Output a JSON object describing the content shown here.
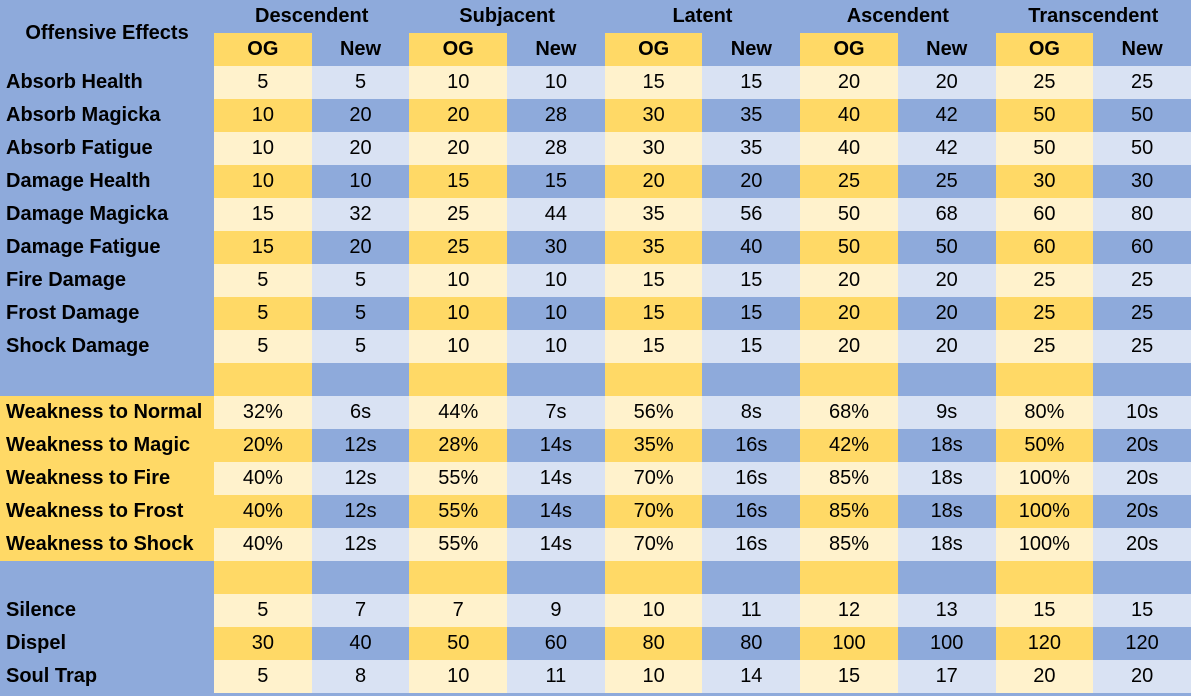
{
  "sheet": {
    "corner_label": "Offensive Effects",
    "tiers": [
      "Descendent",
      "Subjacent",
      "Latent",
      "Ascendent",
      "Transcendent"
    ],
    "sub_headers": [
      "OG",
      "New",
      "OG",
      "New",
      "OG",
      "New",
      "OG",
      "New",
      "OG",
      "New"
    ],
    "rows": [
      {
        "label": "Absorb Health",
        "values": [
          "5",
          "5",
          "10",
          "10",
          "15",
          "15",
          "20",
          "20",
          "25",
          "25"
        ]
      },
      {
        "label": "Absorb Magicka",
        "values": [
          "10",
          "20",
          "20",
          "28",
          "30",
          "35",
          "40",
          "42",
          "50",
          "50"
        ]
      },
      {
        "label": "Absorb Fatigue",
        "values": [
          "10",
          "20",
          "20",
          "28",
          "30",
          "35",
          "40",
          "42",
          "50",
          "50"
        ]
      },
      {
        "label": "Damage Health",
        "values": [
          "10",
          "10",
          "15",
          "15",
          "20",
          "20",
          "25",
          "25",
          "30",
          "30"
        ]
      },
      {
        "label": "Damage Magicka",
        "values": [
          "15",
          "32",
          "25",
          "44",
          "35",
          "56",
          "50",
          "68",
          "60",
          "80"
        ]
      },
      {
        "label": "Damage Fatigue",
        "values": [
          "15",
          "20",
          "25",
          "30",
          "35",
          "40",
          "50",
          "50",
          "60",
          "60"
        ]
      },
      {
        "label": "Fire Damage",
        "values": [
          "5",
          "5",
          "10",
          "10",
          "15",
          "15",
          "20",
          "20",
          "25",
          "25"
        ]
      },
      {
        "label": "Frost Damage",
        "values": [
          "5",
          "5",
          "10",
          "10",
          "15",
          "15",
          "20",
          "20",
          "25",
          "25"
        ]
      },
      {
        "label": "Shock Damage",
        "values": [
          "5",
          "5",
          "10",
          "10",
          "15",
          "15",
          "20",
          "20",
          "25",
          "25"
        ]
      },
      {
        "label": "",
        "values": [
          "",
          "",
          "",
          "",
          "",
          "",
          "",
          "",
          "",
          ""
        ]
      },
      {
        "label": "Weakness to Normal",
        "values": [
          "32%",
          "6s",
          "44%",
          "7s",
          "56%",
          "8s",
          "68%",
          "9s",
          "80%",
          "10s"
        ]
      },
      {
        "label": "Weakness to Magic",
        "values": [
          "20%",
          "12s",
          "28%",
          "14s",
          "35%",
          "16s",
          "42%",
          "18s",
          "50%",
          "20s"
        ]
      },
      {
        "label": "Weakness to Fire",
        "values": [
          "40%",
          "12s",
          "55%",
          "14s",
          "70%",
          "16s",
          "85%",
          "18s",
          "100%",
          "20s"
        ]
      },
      {
        "label": "Weakness to Frost",
        "values": [
          "40%",
          "12s",
          "55%",
          "14s",
          "70%",
          "16s",
          "85%",
          "18s",
          "100%",
          "20s"
        ]
      },
      {
        "label": "Weakness to Shock",
        "values": [
          "40%",
          "12s",
          "55%",
          "14s",
          "70%",
          "16s",
          "85%",
          "18s",
          "100%",
          "20s"
        ]
      },
      {
        "label": "",
        "values": [
          "",
          "",
          "",
          "",
          "",
          "",
          "",
          "",
          "",
          ""
        ]
      },
      {
        "label": "Silence",
        "values": [
          "5",
          "7",
          "7",
          "9",
          "10",
          "11",
          "12",
          "13",
          "15",
          "15"
        ]
      },
      {
        "label": "Dispel",
        "values": [
          "30",
          "40",
          "50",
          "60",
          "80",
          "80",
          "100",
          "100",
          "120",
          "120"
        ]
      },
      {
        "label": "Soul Trap",
        "values": [
          "5",
          "8",
          "10",
          "11",
          "10",
          "14",
          "15",
          "17",
          "20",
          "20"
        ]
      }
    ]
  }
}
